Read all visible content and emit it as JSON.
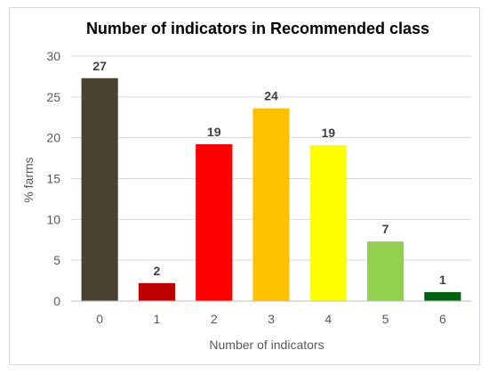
{
  "chart_data": {
    "type": "bar",
    "title": "Number of indicators in Recommended class",
    "xlabel": "Number of indicators",
    "ylabel": "% farms",
    "categories": [
      "0",
      "1",
      "2",
      "3",
      "4",
      "5",
      "6"
    ],
    "values": [
      27.3,
      2.2,
      19.2,
      23.6,
      19.1,
      7.3,
      1.1
    ],
    "data_labels": [
      "27",
      "2",
      "19",
      "24",
      "19",
      "7",
      "1"
    ],
    "colors": [
      "#4a4330",
      "#c00000",
      "#ff0000",
      "#ffc000",
      "#ffff00",
      "#92d050",
      "#00610f"
    ],
    "ylim": [
      0,
      30
    ],
    "yticks": [
      "0",
      "5",
      "10",
      "15",
      "20",
      "25",
      "30"
    ],
    "grid": true,
    "legend": "none"
  }
}
